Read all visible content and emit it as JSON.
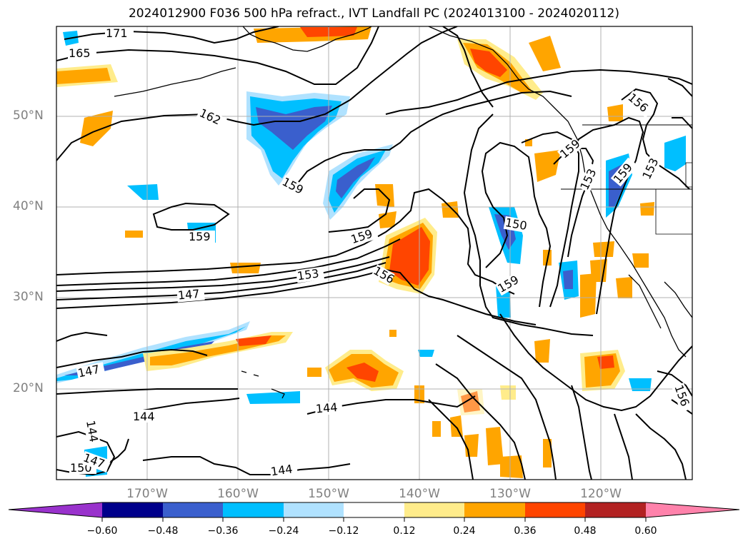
{
  "title": "2024012900 F036 500 hPa refract., IVT Landfall PC (2024013100 - 2024020112)",
  "map": {
    "lon_range": [
      -180,
      -110
    ],
    "lat_range": [
      10,
      60
    ],
    "lat_ticks": [
      "50°N",
      "40°N",
      "30°N",
      "20°N"
    ],
    "lon_ticks": [
      "170°W",
      "160°W",
      "150°W",
      "140°W",
      "130°W",
      "120°W"
    ],
    "contour_labels": [
      "171",
      "165",
      "162",
      "159",
      "159",
      "159",
      "159",
      "153",
      "153",
      "150",
      "147",
      "147",
      "156",
      "156",
      "159",
      "153",
      "144",
      "144",
      "144",
      "144",
      "150",
      "147",
      "156",
      "159"
    ],
    "contour_color": "#000000",
    "coastline_color": "#000000",
    "gridline_color": "#b0b0b0"
  },
  "colorbar": {
    "tick_labels": [
      "−0.60",
      "−0.48",
      "−0.36",
      "−0.24",
      "−0.12",
      "0.12",
      "0.24",
      "0.36",
      "0.48",
      "0.60"
    ],
    "colors": [
      "#9932cc",
      "#00008b",
      "#3a5fcd",
      "#00bfff",
      "#b0e2ff",
      "#ffffff",
      "#ffec8b",
      "#ffa500",
      "#ff4500",
      "#b22222",
      "#ff82ab"
    ],
    "extend": "both"
  }
}
